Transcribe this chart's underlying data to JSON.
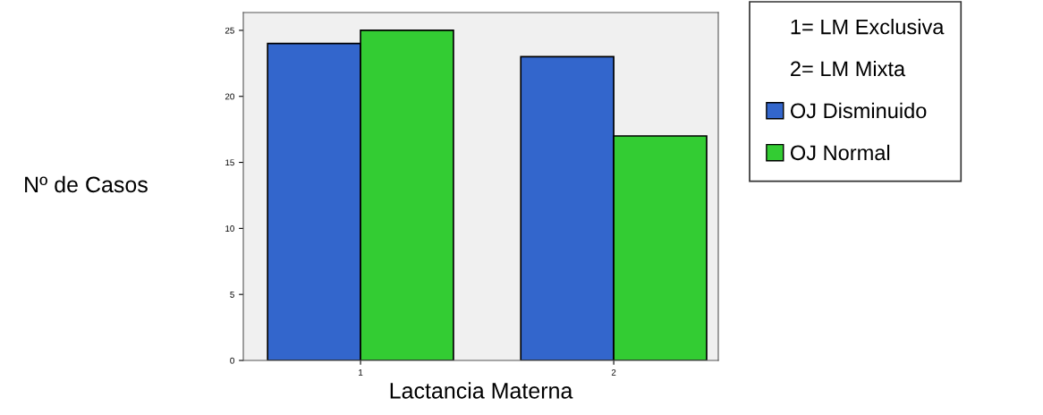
{
  "chart_data": {
    "type": "bar",
    "xlabel": "Lactancia Materna",
    "ylabel": "Nº de Casos",
    "categories": [
      "1",
      "2"
    ],
    "series": [
      {
        "name": "OJ Disminuido",
        "color": "#3366cc",
        "values": [
          24,
          23
        ]
      },
      {
        "name": "OJ Normal",
        "color": "#33cc33",
        "values": [
          25,
          17
        ]
      }
    ],
    "ylim": [
      0,
      26.35
    ],
    "yticks": [
      0,
      5,
      10,
      15,
      20,
      25
    ],
    "grid": false,
    "legend": "right",
    "annotations": [
      "1= LM Exclusiva",
      "2= LM Mixta"
    ]
  }
}
